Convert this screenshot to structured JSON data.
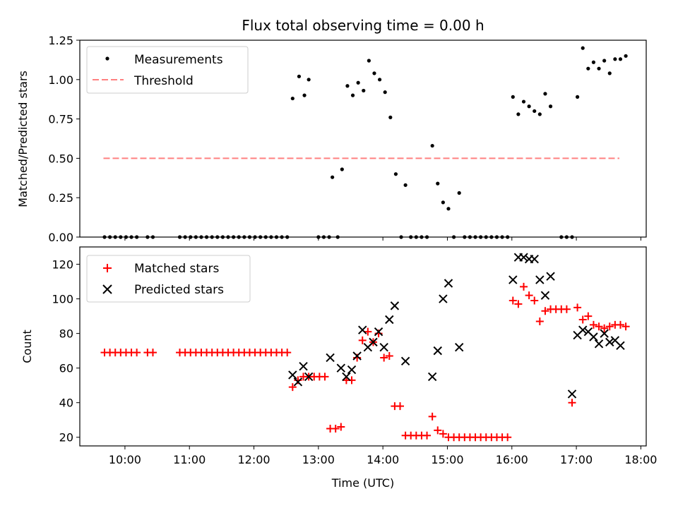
{
  "title": "Flux total observing time = 0.00 h",
  "colors": {
    "measurement": "#000000",
    "threshold": "#ff8080",
    "matched": "#ff0000",
    "predicted": "#000000"
  },
  "chart_data": [
    {
      "type": "scatter",
      "ylabel": "Matched/Predicted stars",
      "xlim": [
        "09:18",
        "18:05"
      ],
      "ylim": [
        0,
        1.25
      ],
      "yticks": [
        0.0,
        0.25,
        0.5,
        0.75,
        1.0,
        1.25
      ],
      "ytick_labels": [
        "0.00",
        "0.25",
        "0.50",
        "0.75",
        "1.00",
        "1.25"
      ],
      "legend": {
        "position": "top-left",
        "entries": [
          {
            "label": "Measurements",
            "marker": "dot"
          },
          {
            "label": "Threshold",
            "marker": "dashed-line"
          }
        ]
      },
      "threshold": {
        "value": 0.5,
        "x_from": "09:40",
        "x_to": "17:40"
      },
      "series": [
        {
          "name": "Measurements",
          "points": [
            [
              "09:41",
              0
            ],
            [
              "09:46",
              0
            ],
            [
              "09:51",
              0
            ],
            [
              "09:56",
              0
            ],
            [
              "10:01",
              0
            ],
            [
              "10:06",
              0
            ],
            [
              "10:11",
              0
            ],
            [
              "10:21",
              0
            ],
            [
              "10:26",
              0
            ],
            [
              "10:51",
              0
            ],
            [
              "10:56",
              0
            ],
            [
              "11:01",
              0
            ],
            [
              "11:06",
              0
            ],
            [
              "11:11",
              0
            ],
            [
              "11:16",
              0
            ],
            [
              "11:21",
              0
            ],
            [
              "11:26",
              0
            ],
            [
              "11:31",
              0
            ],
            [
              "11:36",
              0
            ],
            [
              "11:41",
              0
            ],
            [
              "11:46",
              0
            ],
            [
              "11:51",
              0
            ],
            [
              "11:56",
              0
            ],
            [
              "12:01",
              0
            ],
            [
              "12:06",
              0
            ],
            [
              "12:11",
              0
            ],
            [
              "12:16",
              0
            ],
            [
              "12:21",
              0
            ],
            [
              "12:26",
              0
            ],
            [
              "12:31",
              0
            ],
            [
              "12:36",
              0.88
            ],
            [
              "12:42",
              1.02
            ],
            [
              "12:47",
              0.9
            ],
            [
              "12:51",
              1.0
            ],
            [
              "13:00",
              0
            ],
            [
              "13:05",
              0
            ],
            [
              "13:10",
              0
            ],
            [
              "13:13",
              0.38
            ],
            [
              "13:18",
              0
            ],
            [
              "13:22",
              0.43
            ],
            [
              "13:27",
              0.96
            ],
            [
              "13:32",
              0.9
            ],
            [
              "13:37",
              0.98
            ],
            [
              "13:42",
              0.93
            ],
            [
              "13:47",
              1.12
            ],
            [
              "13:52",
              1.04
            ],
            [
              "13:57",
              1.0
            ],
            [
              "14:02",
              0.92
            ],
            [
              "14:07",
              0.76
            ],
            [
              "14:12",
              0.4
            ],
            [
              "14:17",
              0
            ],
            [
              "14:21",
              0.33
            ],
            [
              "14:26",
              0
            ],
            [
              "14:31",
              0
            ],
            [
              "14:36",
              0
            ],
            [
              "14:41",
              0
            ],
            [
              "14:46",
              0.58
            ],
            [
              "14:51",
              0.34
            ],
            [
              "14:56",
              0.22
            ],
            [
              "15:01",
              0.18
            ],
            [
              "15:06",
              0
            ],
            [
              "15:11",
              0.28
            ],
            [
              "15:16",
              0
            ],
            [
              "15:21",
              0
            ],
            [
              "15:26",
              0
            ],
            [
              "15:31",
              0
            ],
            [
              "15:36",
              0
            ],
            [
              "15:41",
              0
            ],
            [
              "15:46",
              0
            ],
            [
              "15:51",
              0
            ],
            [
              "15:56",
              0
            ],
            [
              "16:01",
              0.89
            ],
            [
              "16:06",
              0.78
            ],
            [
              "16:11",
              0.86
            ],
            [
              "16:16",
              0.83
            ],
            [
              "16:21",
              0.8
            ],
            [
              "16:26",
              0.78
            ],
            [
              "16:31",
              0.91
            ],
            [
              "16:36",
              0.83
            ],
            [
              "16:46",
              0
            ],
            [
              "16:51",
              0
            ],
            [
              "16:56",
              0
            ],
            [
              "17:01",
              0.89
            ],
            [
              "17:06",
              1.2
            ],
            [
              "17:11",
              1.07
            ],
            [
              "17:16",
              1.11
            ],
            [
              "17:21",
              1.07
            ],
            [
              "17:26",
              1.12
            ],
            [
              "17:31",
              1.04
            ],
            [
              "17:36",
              1.13
            ],
            [
              "17:41",
              1.13
            ],
            [
              "17:46",
              1.15
            ]
          ]
        }
      ]
    },
    {
      "type": "scatter",
      "xlabel": "Time (UTC)",
      "ylabel": "Count",
      "xlim": [
        "09:18",
        "18:05"
      ],
      "ylim": [
        15,
        130
      ],
      "yticks": [
        20,
        40,
        60,
        80,
        100,
        120
      ],
      "ytick_labels": [
        "20",
        "40",
        "60",
        "80",
        "100",
        "120"
      ],
      "xticks": [
        "10:00",
        "11:00",
        "12:00",
        "13:00",
        "14:00",
        "15:00",
        "16:00",
        "17:00",
        "18:00"
      ],
      "legend": {
        "position": "top-left",
        "entries": [
          {
            "label": "Matched stars",
            "marker": "plus"
          },
          {
            "label": "Predicted stars",
            "marker": "x"
          }
        ]
      },
      "series": [
        {
          "name": "Matched stars",
          "points": [
            [
              "09:41",
              69
            ],
            [
              "09:46",
              69
            ],
            [
              "09:51",
              69
            ],
            [
              "09:56",
              69
            ],
            [
              "10:01",
              69
            ],
            [
              "10:06",
              69
            ],
            [
              "10:11",
              69
            ],
            [
              "10:21",
              69
            ],
            [
              "10:26",
              69
            ],
            [
              "10:51",
              69
            ],
            [
              "10:56",
              69
            ],
            [
              "11:01",
              69
            ],
            [
              "11:06",
              69
            ],
            [
              "11:11",
              69
            ],
            [
              "11:16",
              69
            ],
            [
              "11:21",
              69
            ],
            [
              "11:26",
              69
            ],
            [
              "11:31",
              69
            ],
            [
              "11:36",
              69
            ],
            [
              "11:41",
              69
            ],
            [
              "11:46",
              69
            ],
            [
              "11:51",
              69
            ],
            [
              "11:56",
              69
            ],
            [
              "12:01",
              69
            ],
            [
              "12:06",
              69
            ],
            [
              "12:11",
              69
            ],
            [
              "12:16",
              69
            ],
            [
              "12:21",
              69
            ],
            [
              "12:26",
              69
            ],
            [
              "12:31",
              69
            ],
            [
              "12:36",
              49
            ],
            [
              "12:41",
              53
            ],
            [
              "12:46",
              55
            ],
            [
              "12:51",
              55
            ],
            [
              "12:56",
              55
            ],
            [
              "13:01",
              55
            ],
            [
              "13:06",
              55
            ],
            [
              "13:11",
              25
            ],
            [
              "13:16",
              25
            ],
            [
              "13:21",
              26
            ],
            [
              "13:26",
              53
            ],
            [
              "13:31",
              53
            ],
            [
              "13:36",
              66
            ],
            [
              "13:41",
              76
            ],
            [
              "13:46",
              81
            ],
            [
              "13:51",
              75
            ],
            [
              "13:56",
              80
            ],
            [
              "14:01",
              66
            ],
            [
              "14:06",
              67
            ],
            [
              "14:11",
              38
            ],
            [
              "14:16",
              38
            ],
            [
              "14:21",
              21
            ],
            [
              "14:26",
              21
            ],
            [
              "14:31",
              21
            ],
            [
              "14:36",
              21
            ],
            [
              "14:41",
              21
            ],
            [
              "14:46",
              32
            ],
            [
              "14:51",
              24
            ],
            [
              "14:56",
              22
            ],
            [
              "15:01",
              20
            ],
            [
              "15:06",
              20
            ],
            [
              "15:11",
              20
            ],
            [
              "15:16",
              20
            ],
            [
              "15:21",
              20
            ],
            [
              "15:26",
              20
            ],
            [
              "15:31",
              20
            ],
            [
              "15:36",
              20
            ],
            [
              "15:41",
              20
            ],
            [
              "15:46",
              20
            ],
            [
              "15:51",
              20
            ],
            [
              "15:56",
              20
            ],
            [
              "16:01",
              99
            ],
            [
              "16:06",
              97
            ],
            [
              "16:11",
              107
            ],
            [
              "16:16",
              102
            ],
            [
              "16:21",
              99
            ],
            [
              "16:26",
              87
            ],
            [
              "16:31",
              93
            ],
            [
              "16:36",
              94
            ],
            [
              "16:41",
              94
            ],
            [
              "16:46",
              94
            ],
            [
              "16:51",
              94
            ],
            [
              "16:56",
              40
            ],
            [
              "17:01",
              95
            ],
            [
              "17:06",
              88
            ],
            [
              "17:11",
              90
            ],
            [
              "17:16",
              85
            ],
            [
              "17:21",
              84
            ],
            [
              "17:26",
              83
            ],
            [
              "17:31",
              84
            ],
            [
              "17:36",
              85
            ],
            [
              "17:41",
              85
            ],
            [
              "17:46",
              84
            ]
          ]
        },
        {
          "name": "Predicted stars",
          "points": [
            [
              "12:36",
              56
            ],
            [
              "12:41",
              52
            ],
            [
              "12:46",
              61
            ],
            [
              "12:51",
              55
            ],
            [
              "13:11",
              66
            ],
            [
              "13:21",
              60
            ],
            [
              "13:26",
              55
            ],
            [
              "13:31",
              59
            ],
            [
              "13:36",
              67
            ],
            [
              "13:41",
              82
            ],
            [
              "13:46",
              72
            ],
            [
              "13:51",
              75
            ],
            [
              "13:56",
              81
            ],
            [
              "14:01",
              72
            ],
            [
              "14:06",
              88
            ],
            [
              "14:11",
              96
            ],
            [
              "14:21",
              64
            ],
            [
              "14:46",
              55
            ],
            [
              "14:51",
              70
            ],
            [
              "14:56",
              100
            ],
            [
              "15:01",
              109
            ],
            [
              "15:11",
              72
            ],
            [
              "16:01",
              111
            ],
            [
              "16:06",
              124
            ],
            [
              "16:11",
              124
            ],
            [
              "16:16",
              123
            ],
            [
              "16:21",
              123
            ],
            [
              "16:26",
              111
            ],
            [
              "16:31",
              102
            ],
            [
              "16:36",
              113
            ],
            [
              "16:56",
              45
            ],
            [
              "17:01",
              79
            ],
            [
              "17:06",
              82
            ],
            [
              "17:11",
              81
            ],
            [
              "17:16",
              78
            ],
            [
              "17:21",
              74
            ],
            [
              "17:26",
              80
            ],
            [
              "17:31",
              75
            ],
            [
              "17:36",
              76
            ],
            [
              "17:41",
              73
            ]
          ]
        }
      ]
    }
  ]
}
